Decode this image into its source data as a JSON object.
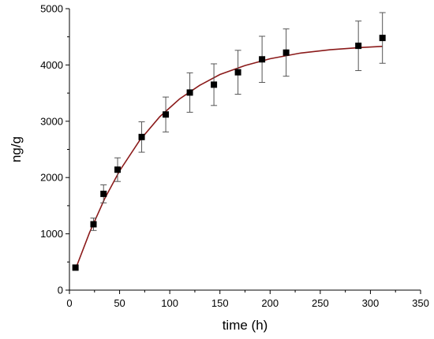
{
  "chart_data": {
    "type": "scatter",
    "title": "",
    "xlabel": "time (h)",
    "ylabel": "ng/g",
    "xlim": [
      0,
      350
    ],
    "ylim": [
      0,
      5000
    ],
    "x_ticks": [
      0,
      50,
      100,
      150,
      200,
      250,
      300,
      350
    ],
    "y_ticks": [
      0,
      1000,
      2000,
      3000,
      4000,
      5000
    ],
    "grid": false,
    "legend": "none",
    "marker_color": "#000000",
    "fit_color": "#8b1a1a",
    "errorbar_color": "#555555",
    "series": [
      {
        "type": "scatter",
        "x": [
          6,
          24,
          34,
          48,
          72,
          96,
          120,
          144,
          168,
          192,
          216,
          288,
          312
        ],
        "y": [
          400,
          1170,
          1710,
          2140,
          2720,
          3120,
          3510,
          3650,
          3870,
          4100,
          4220,
          4340,
          4480
        ],
        "error": [
          0,
          110,
          160,
          210,
          270,
          310,
          350,
          370,
          390,
          410,
          420,
          440,
          450
        ]
      },
      {
        "type": "line",
        "x": [
          6,
          20,
          35,
          50,
          70,
          90,
          110,
          130,
          150,
          175,
          200,
          230,
          260,
          290,
          312
        ],
        "y": [
          370,
          1020,
          1620,
          2120,
          2660,
          3080,
          3400,
          3640,
          3830,
          3990,
          4110,
          4210,
          4270,
          4310,
          4330
        ]
      }
    ]
  }
}
